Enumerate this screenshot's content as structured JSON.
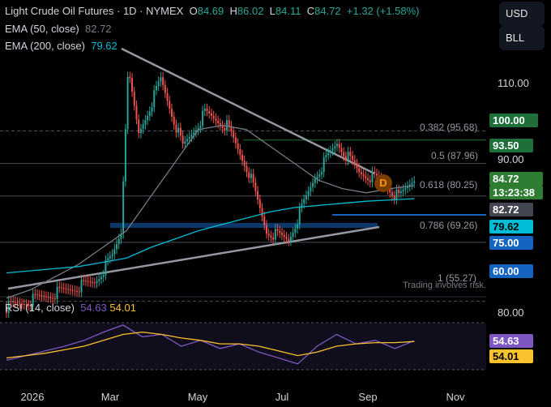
{
  "header": {
    "symbol": "Light Crude Oil Futures · 1D · NYMEX",
    "o_label": "O",
    "o_value": "84.69",
    "h_label": "H",
    "h_value": "86.02",
    "l_label": "L",
    "l_value": "84.11",
    "c_label": "C",
    "c_value": "84.72",
    "change": "+1.32 (+1.58%)",
    "ema50_label": "EMA (50, close)",
    "ema50_value": "82.72",
    "ema200_label": "EMA (200, close)",
    "ema200_value": "79.62"
  },
  "buttons": {
    "currency": "USD",
    "unit": "BLL"
  },
  "price_axis": {
    "labels": [
      "110.00",
      "90.00",
      "80.00"
    ]
  },
  "price_tags": [
    {
      "text": "100.00",
      "bg": "#1e6f3a",
      "fg": "#ffffff"
    },
    {
      "text": "93.50",
      "bg": "#1e6f3a",
      "fg": "#ffffff"
    },
    {
      "text": "84.72",
      "bg": "#2e7d32",
      "fg": "#ffffff"
    },
    {
      "text": "13:23:38",
      "bg": "#2e7d32",
      "fg": "#ffffff"
    },
    {
      "text": "82.72",
      "bg": "#434651",
      "fg": "#ffffff"
    },
    {
      "text": "79.62",
      "bg": "#00bcd4",
      "fg": "#000000"
    },
    {
      "text": "75.00",
      "bg": "#1565c0",
      "fg": "#ffffff"
    },
    {
      "text": "60.00",
      "bg": "#1565c0",
      "fg": "#ffffff"
    },
    {
      "text": "54.63",
      "bg": "#7e57c2",
      "fg": "#ffffff"
    },
    {
      "text": "54.01",
      "bg": "#fbc02d",
      "fg": "#000000"
    }
  ],
  "fib_levels": [
    {
      "label": "0.382 (95.68)",
      "value": 95.68
    },
    {
      "label": "0.5 (87.96)",
      "value": 87.96
    },
    {
      "label": "0.618 (80.25)",
      "value": 80.25
    },
    {
      "label": "0.786 (69.26)",
      "value": 69.26
    },
    {
      "label": "1 (55.27)",
      "value": 55.27
    }
  ],
  "pattern_marker": "D",
  "disclaimer": "Trading involves risk.",
  "rsi": {
    "label": "RSI (14, close)",
    "value": "54.63",
    "ma_value": "54.01",
    "axis_label": "80.00",
    "line_color": "#7e57c2",
    "ma_color": "#fbc02d"
  },
  "x_axis": {
    "labels": [
      "2026",
      "Mar",
      "May",
      "Jul",
      "Sep",
      "Nov"
    ]
  },
  "colors": {
    "up": "#26a69a",
    "down": "#ef5350",
    "ema50": "#787b86",
    "ema200": "#00bcd4",
    "trendline": "#9598a1"
  },
  "chart_data": {
    "type": "line",
    "title": "Light Crude Oil Futures · 1D · NYMEX",
    "x": [
      "2026-01-01",
      "2026-01-15",
      "2026-02-01",
      "2026-02-15",
      "2026-03-01",
      "2026-03-05",
      "2026-03-15",
      "2026-04-01",
      "2026-04-15",
      "2026-05-01",
      "2026-05-15",
      "2026-06-01",
      "2026-06-15",
      "2026-07-01",
      "2026-07-15",
      "2026-08-01",
      "2026-08-15",
      "2026-09-01"
    ],
    "series": [
      {
        "name": "EMA (50, close)",
        "values": [
          56,
          58,
          61,
          64,
          68,
          72,
          80,
          88,
          96,
          97,
          96,
          92,
          88,
          84,
          82,
          81,
          82,
          82.72
        ]
      },
      {
        "name": "EMA (200, close)",
        "values": [
          62,
          62.5,
          63,
          63.5,
          64.5,
          65.5,
          68,
          70,
          72,
          73.5,
          75,
          76.5,
          77.5,
          78,
          78.5,
          79,
          79.3,
          79.62
        ]
      }
    ],
    "price_high": 86.02,
    "price_low": 84.11,
    "price_close": 84.72,
    "price_open": 84.69,
    "rsi_values": [
      38,
      42,
      46,
      50,
      55,
      62,
      68,
      58,
      60,
      50,
      55,
      48,
      52,
      45,
      40,
      35,
      50,
      60,
      52,
      55,
      48,
      54.63
    ],
    "rsi_ma_values": [
      40,
      42,
      44,
      47,
      50,
      55,
      60,
      62,
      60,
      57,
      55,
      52,
      52,
      50,
      46,
      42,
      45,
      50,
      52,
      53,
      53,
      54.01
    ]
  }
}
